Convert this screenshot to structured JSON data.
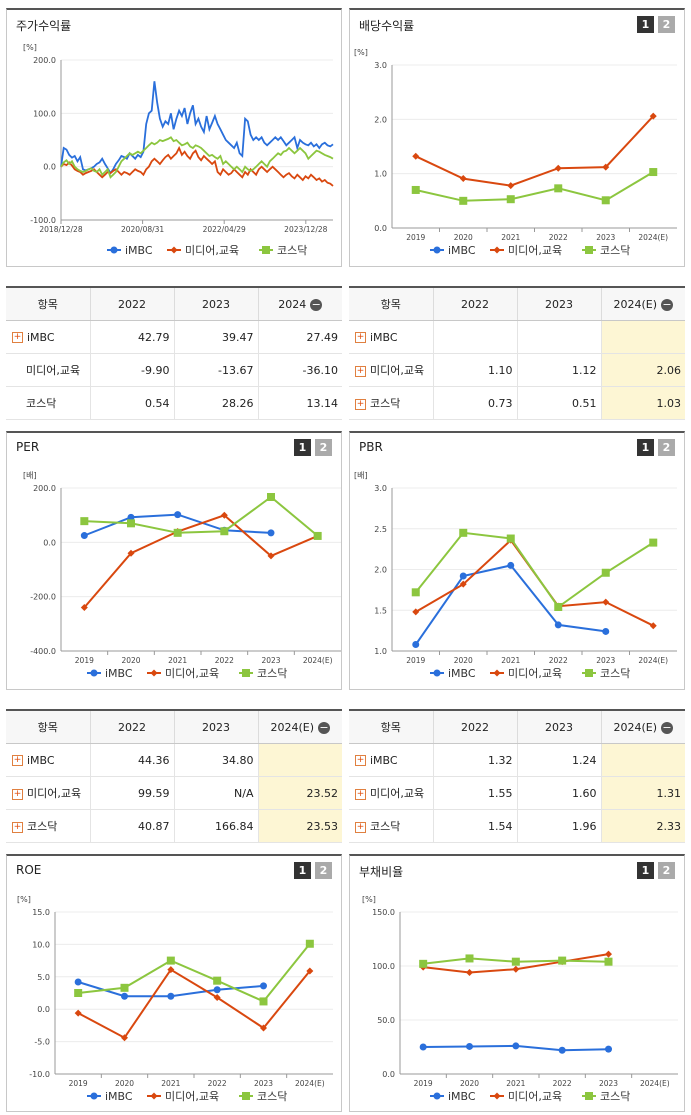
{
  "panels": {
    "returns": {
      "title": "주가수익률"
    },
    "dividend": {
      "title": "배당수익률",
      "btn1": "1",
      "btn2": "2"
    },
    "per": {
      "title": "PER",
      "btn1": "1",
      "btn2": "2"
    },
    "pbr": {
      "title": "PBR",
      "btn1": "1",
      "btn2": "2"
    },
    "roe": {
      "title": "ROE",
      "btn1": "1",
      "btn2": "2"
    },
    "debt": {
      "title": "부채비율",
      "btn1": "1",
      "btn2": "2"
    }
  },
  "colors": {
    "imbc": "#2a6fdb",
    "media": "#d9480f",
    "kosdaq": "#8cc63f"
  },
  "chart_data": [
    {
      "id": "returns",
      "type": "line",
      "unit": "[%]",
      "ylim": [
        -100,
        200
      ],
      "yticks": [
        "200.0",
        "100.0",
        "0.0",
        "-100.0"
      ],
      "ytickvals": [
        200,
        100,
        0,
        -100
      ],
      "x_tick_labels": [
        "2018/12/28",
        "2020/08/31",
        "2022/04/29",
        "2023/12/28"
      ],
      "x_tick_pos": [
        0,
        0.3,
        0.6,
        0.9
      ],
      "series": [
        {
          "name": "iMBC",
          "key": "imbc",
          "marker": "circle",
          "values": [
            0,
            35,
            32,
            22,
            17,
            20,
            10,
            18,
            -5,
            -7,
            -5,
            -3,
            0,
            5,
            8,
            15,
            5,
            -3,
            -12,
            -5,
            5,
            12,
            20,
            18,
            15,
            25,
            20,
            15,
            22,
            18,
            28,
            80,
            100,
            105,
            160,
            120,
            90,
            75,
            85,
            80,
            100,
            70,
            90,
            105,
            95,
            110,
            80,
            100,
            115,
            80,
            90,
            75,
            65,
            95,
            70,
            82,
            95,
            80,
            70,
            60,
            50,
            45,
            40,
            35,
            45,
            25,
            20,
            90,
            85,
            60,
            50,
            55,
            50,
            55,
            45,
            40,
            45,
            50,
            55,
            50,
            55,
            48,
            40,
            45,
            50,
            55,
            35,
            50,
            45,
            42,
            40,
            45,
            38,
            42,
            35,
            42,
            45,
            40,
            38,
            42
          ]
        },
        {
          "name": "미디어,교육",
          "key": "media",
          "marker": "diamond",
          "values": [
            0,
            5,
            3,
            8,
            2,
            -5,
            -8,
            -10,
            -15,
            -12,
            -10,
            -8,
            -5,
            -10,
            -15,
            -20,
            -15,
            -10,
            -12,
            -8,
            -5,
            -10,
            -15,
            -10,
            -12,
            -15,
            -10,
            -5,
            -8,
            -10,
            -15,
            -5,
            0,
            10,
            15,
            10,
            5,
            12,
            18,
            22,
            15,
            20,
            25,
            35,
            22,
            28,
            20,
            15,
            25,
            30,
            18,
            12,
            20,
            15,
            10,
            5,
            10,
            -10,
            -15,
            -5,
            -10,
            -15,
            -12,
            -5,
            -10,
            -15,
            -20,
            -10,
            -15,
            -5,
            -10,
            -15,
            -5,
            0,
            -5,
            -10,
            -5,
            0,
            -5,
            -10,
            -15,
            -20,
            -15,
            -12,
            -18,
            -22,
            -15,
            -20,
            -25,
            -18,
            -22,
            -15,
            -20,
            -25,
            -22,
            -28,
            -25,
            -30,
            -32,
            -36
          ]
        },
        {
          "name": "코스닥",
          "key": "kosdaq",
          "marker": "square",
          "values": [
            0,
            8,
            12,
            5,
            10,
            0,
            -5,
            -8,
            -10,
            -8,
            -5,
            -3,
            -8,
            -10,
            -5,
            -15,
            -10,
            -5,
            -20,
            -15,
            -10,
            0,
            10,
            15,
            20,
            25,
            22,
            25,
            28,
            25,
            30,
            35,
            40,
            45,
            42,
            45,
            50,
            48,
            50,
            52,
            55,
            48,
            50,
            45,
            40,
            42,
            45,
            38,
            35,
            40,
            38,
            35,
            30,
            25,
            20,
            22,
            18,
            15,
            20,
            5,
            10,
            5,
            0,
            -5,
            0,
            -5,
            -10,
            0,
            -5,
            -8,
            -5,
            0,
            5,
            10,
            5,
            0,
            10,
            15,
            20,
            25,
            22,
            28,
            30,
            35,
            30,
            25,
            30,
            35,
            30,
            25,
            15,
            20,
            25,
            30,
            28,
            25,
            22,
            20,
            18,
            15
          ]
        }
      ]
    },
    {
      "id": "dividend",
      "type": "line",
      "unit": "[%]",
      "ylim": [
        0,
        3
      ],
      "yticks": [
        "3.0",
        "2.0",
        "1.0",
        "0.0"
      ],
      "ytickvals": [
        3,
        2,
        1,
        0
      ],
      "categories": [
        "2019",
        "2020",
        "2021",
        "2022",
        "2023",
        "2024(E)"
      ],
      "series": [
        {
          "name": "iMBC",
          "key": "imbc",
          "marker": "circle",
          "values": [
            null,
            null,
            null,
            null,
            null,
            null
          ]
        },
        {
          "name": "미디어,교육",
          "key": "media",
          "marker": "diamond",
          "values": [
            1.32,
            0.91,
            0.78,
            1.1,
            1.12,
            2.06
          ]
        },
        {
          "name": "코스닥",
          "key": "kosdaq",
          "marker": "square",
          "values": [
            0.7,
            0.5,
            0.53,
            0.73,
            0.51,
            1.03
          ]
        }
      ]
    },
    {
      "id": "per",
      "type": "line",
      "unit": "[배]",
      "ylim": [
        -400,
        200
      ],
      "yticks": [
        "200.0",
        "0.0",
        "-200.0",
        "-400.0"
      ],
      "ytickvals": [
        200,
        0,
        -200,
        -400
      ],
      "categories": [
        "2019",
        "2020",
        "2021",
        "2022",
        "2023",
        "2024(E)"
      ],
      "series": [
        {
          "name": "iMBC",
          "key": "imbc",
          "marker": "circle",
          "values": [
            25,
            92,
            102,
            44.36,
            34.8,
            null
          ]
        },
        {
          "name": "미디어,교육",
          "key": "media",
          "marker": "diamond",
          "values": [
            -240,
            -40,
            40,
            99.59,
            -50,
            23.52
          ]
        },
        {
          "name": "코스닥",
          "key": "kosdaq",
          "marker": "square",
          "values": [
            78,
            70,
            35,
            40.87,
            166.84,
            23.53
          ]
        }
      ]
    },
    {
      "id": "pbr",
      "type": "line",
      "unit": "[배]",
      "ylim": [
        1.0,
        3.0
      ],
      "yticks": [
        "3.0",
        "2.5",
        "2.0",
        "1.5",
        "1.0"
      ],
      "ytickvals": [
        3.0,
        2.5,
        2.0,
        1.5,
        1.0
      ],
      "categories": [
        "2019",
        "2020",
        "2021",
        "2022",
        "2023",
        "2024(E)"
      ],
      "series": [
        {
          "name": "iMBC",
          "key": "imbc",
          "marker": "circle",
          "values": [
            1.08,
            1.92,
            2.05,
            1.32,
            1.24,
            null
          ]
        },
        {
          "name": "미디어,교육",
          "key": "media",
          "marker": "diamond",
          "values": [
            1.48,
            1.82,
            2.36,
            1.55,
            1.6,
            1.31
          ]
        },
        {
          "name": "코스닥",
          "key": "kosdaq",
          "marker": "square",
          "values": [
            1.72,
            2.45,
            2.38,
            1.54,
            1.96,
            2.33
          ]
        }
      ]
    },
    {
      "id": "roe",
      "type": "line",
      "unit": "[%]",
      "ylim": [
        -10,
        15
      ],
      "yticks": [
        "15.0",
        "10.0",
        "5.0",
        "0.0",
        "-5.0",
        "-10.0"
      ],
      "ytickvals": [
        15,
        10,
        5,
        0,
        -5,
        -10
      ],
      "categories": [
        "2019",
        "2020",
        "2021",
        "2022",
        "2023",
        "2024(E)"
      ],
      "series": [
        {
          "name": "iMBC",
          "key": "imbc",
          "marker": "circle",
          "values": [
            4.2,
            2.0,
            2.0,
            3.0,
            3.6,
            null
          ]
        },
        {
          "name": "미디어,교육",
          "key": "media",
          "marker": "diamond",
          "values": [
            -0.6,
            -4.4,
            6.1,
            1.8,
            -2.9,
            5.9
          ]
        },
        {
          "name": "코스닥",
          "key": "kosdaq",
          "marker": "square",
          "values": [
            2.5,
            3.3,
            7.5,
            4.4,
            1.2,
            10.1
          ]
        }
      ]
    },
    {
      "id": "debt",
      "type": "line",
      "unit": "[%]",
      "ylim": [
        0,
        150
      ],
      "yticks": [
        "150.0",
        "100.0",
        "50.0",
        "0.0"
      ],
      "ytickvals": [
        150,
        100,
        50,
        0
      ],
      "categories": [
        "2019",
        "2020",
        "2021",
        "2022",
        "2023",
        "2024(E)"
      ],
      "series": [
        {
          "name": "iMBC",
          "key": "imbc",
          "marker": "circle",
          "values": [
            25,
            25.5,
            26,
            22,
            23,
            null
          ]
        },
        {
          "name": "미디어,교육",
          "key": "media",
          "marker": "diamond",
          "values": [
            99,
            94,
            97,
            104,
            111,
            null
          ]
        },
        {
          "name": "코스닥",
          "key": "kosdaq",
          "marker": "square",
          "values": [
            102,
            107,
            104,
            105,
            104,
            null
          ]
        }
      ]
    }
  ],
  "tables": {
    "returns": {
      "headers": [
        "항목",
        "2022",
        "2023",
        "2024"
      ],
      "rows": [
        {
          "name": "iMBC",
          "plus": true,
          "vals": [
            "42.79",
            "39.47",
            "27.49"
          ]
        },
        {
          "name": "미디어,교육",
          "plus": false,
          "vals": [
            "-9.90",
            "-13.67",
            "-36.10"
          ]
        },
        {
          "name": "코스닥",
          "plus": false,
          "vals": [
            "0.54",
            "28.26",
            "13.14"
          ]
        }
      ]
    },
    "dividend": {
      "headers": [
        "항목",
        "2022",
        "2023",
        "2024(E)"
      ],
      "rows": [
        {
          "name": "iMBC",
          "plus": true,
          "vals": [
            "",
            "",
            ""
          ]
        },
        {
          "name": "미디어,교육",
          "plus": true,
          "vals": [
            "1.10",
            "1.12",
            "2.06"
          ]
        },
        {
          "name": "코스닥",
          "plus": true,
          "vals": [
            "0.73",
            "0.51",
            "1.03"
          ]
        }
      ]
    },
    "per": {
      "headers": [
        "항목",
        "2022",
        "2023",
        "2024(E)"
      ],
      "rows": [
        {
          "name": "iMBC",
          "plus": true,
          "vals": [
            "44.36",
            "34.80",
            ""
          ]
        },
        {
          "name": "미디어,교육",
          "plus": true,
          "vals": [
            "99.59",
            "N/A",
            "23.52"
          ]
        },
        {
          "name": "코스닥",
          "plus": true,
          "vals": [
            "40.87",
            "166.84",
            "23.53"
          ]
        }
      ]
    },
    "pbr": {
      "headers": [
        "항목",
        "2022",
        "2023",
        "2024(E)"
      ],
      "rows": [
        {
          "name": "iMBC",
          "plus": true,
          "vals": [
            "1.32",
            "1.24",
            ""
          ]
        },
        {
          "name": "미디어,교육",
          "plus": true,
          "vals": [
            "1.55",
            "1.60",
            "1.31"
          ]
        },
        {
          "name": "코스닥",
          "plus": true,
          "vals": [
            "1.54",
            "1.96",
            "2.33"
          ]
        }
      ]
    }
  }
}
